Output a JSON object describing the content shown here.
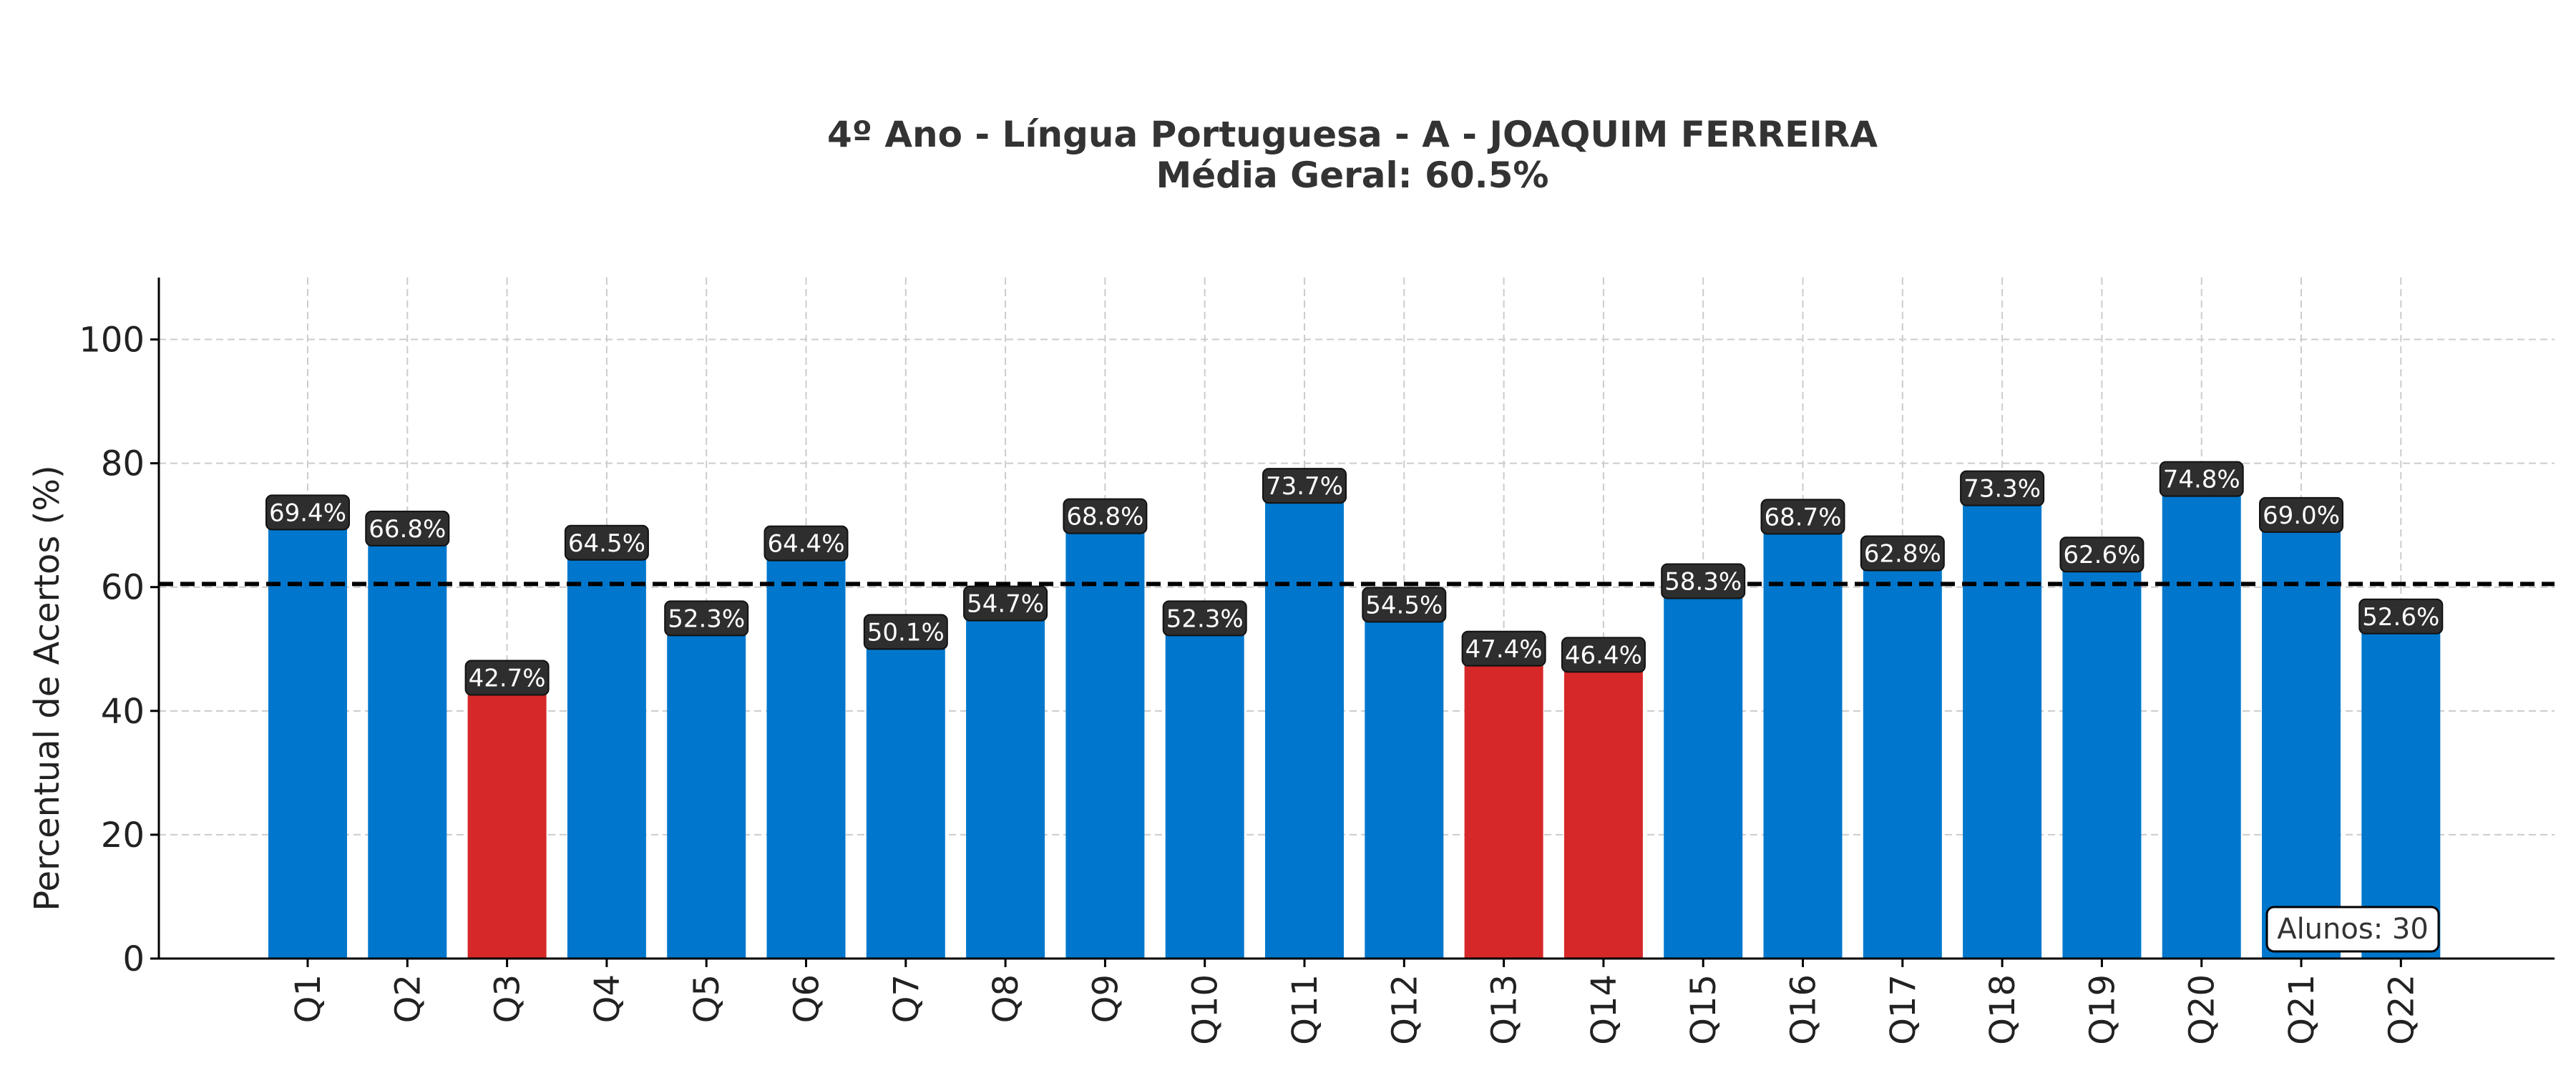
{
  "chart_data": {
    "type": "bar",
    "title": "4º Ano - Língua Portuguesa - A - JOAQUIM FERREIRA",
    "subtitle": "Média Geral: 60.5%",
    "xlabel": "",
    "ylabel": "Percentual de Acertos (%)",
    "ylim": [
      0,
      110
    ],
    "yticks": [
      0,
      20,
      40,
      60,
      80,
      100
    ],
    "grid": true,
    "categories": [
      "Q1",
      "Q2",
      "Q3",
      "Q4",
      "Q5",
      "Q6",
      "Q7",
      "Q8",
      "Q9",
      "Q10",
      "Q11",
      "Q12",
      "Q13",
      "Q14",
      "Q15",
      "Q16",
      "Q17",
      "Q18",
      "Q19",
      "Q20",
      "Q21",
      "Q22"
    ],
    "values": [
      69.4,
      66.8,
      42.7,
      64.5,
      52.3,
      64.4,
      50.1,
      54.7,
      68.8,
      52.3,
      73.7,
      54.5,
      47.4,
      46.4,
      58.3,
      68.7,
      62.8,
      73.3,
      62.6,
      74.8,
      69.0,
      52.6
    ],
    "value_labels": [
      "69.4%",
      "66.8%",
      "42.7%",
      "64.5%",
      "52.3%",
      "64.4%",
      "50.1%",
      "54.7%",
      "68.8%",
      "52.3%",
      "73.7%",
      "54.5%",
      "47.4%",
      "46.4%",
      "58.3%",
      "68.7%",
      "62.8%",
      "73.3%",
      "62.6%",
      "74.8%",
      "69.0%",
      "52.6%"
    ],
    "highlighted": [
      "Q3",
      "Q13",
      "Q14"
    ],
    "average_line": 60.5,
    "annotation": "Alunos: 30",
    "colors": {
      "bar": "#0077CC",
      "bar_highlight": "#D62828",
      "label_bg": "#2E2E2E",
      "label_text": "#FFFFFF",
      "average_line": "#000000",
      "grid": "#CCCCCC"
    }
  }
}
